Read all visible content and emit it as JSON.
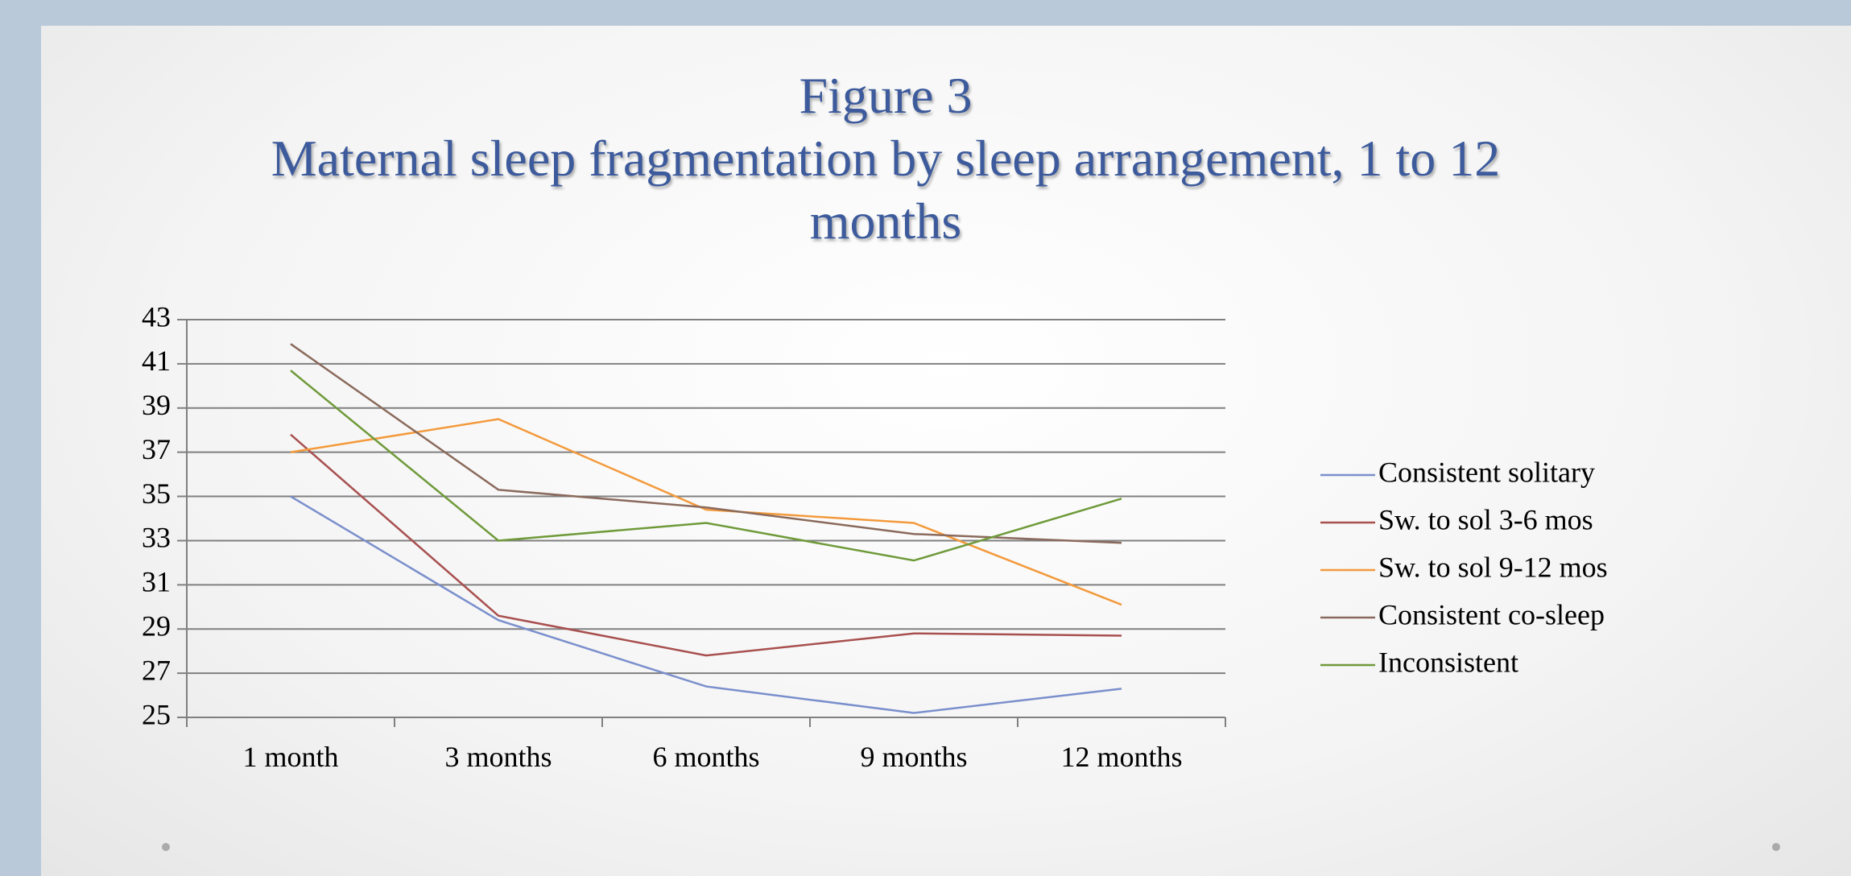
{
  "chart_data": {
    "type": "line",
    "title": "Figure 3",
    "subtitle": "Maternal sleep fragmentation by sleep arrangement, 1 to 12 months",
    "categories": [
      "1 month",
      "3 months",
      "6 months",
      "9 months",
      "12 months"
    ],
    "series": [
      {
        "name": "Consistent solitary",
        "color": "#7a8fcc",
        "values": [
          35.0,
          29.4,
          26.4,
          25.2,
          26.3
        ]
      },
      {
        "name": "Sw. to sol 3-6 mos",
        "color": "#a8504f",
        "values": [
          37.8,
          29.6,
          27.8,
          28.8,
          28.7
        ]
      },
      {
        "name": "Sw. to sol 9-12 mos",
        "color": "#f39a3c",
        "values": [
          37.0,
          38.5,
          34.4,
          33.8,
          30.1
        ]
      },
      {
        "name": "Consistent co-sleep",
        "color": "#8a6a5c",
        "values": [
          41.9,
          35.3,
          34.5,
          33.3,
          32.9
        ]
      },
      {
        "name": "Inconsistent",
        "color": "#6f9a3a",
        "values": [
          40.7,
          33.0,
          33.8,
          32.1,
          34.9
        ]
      }
    ],
    "ylim": [
      25,
      43
    ],
    "yticks": [
      25,
      27,
      29,
      31,
      33,
      35,
      37,
      39,
      41,
      43
    ],
    "grid": true,
    "legend": "right"
  }
}
